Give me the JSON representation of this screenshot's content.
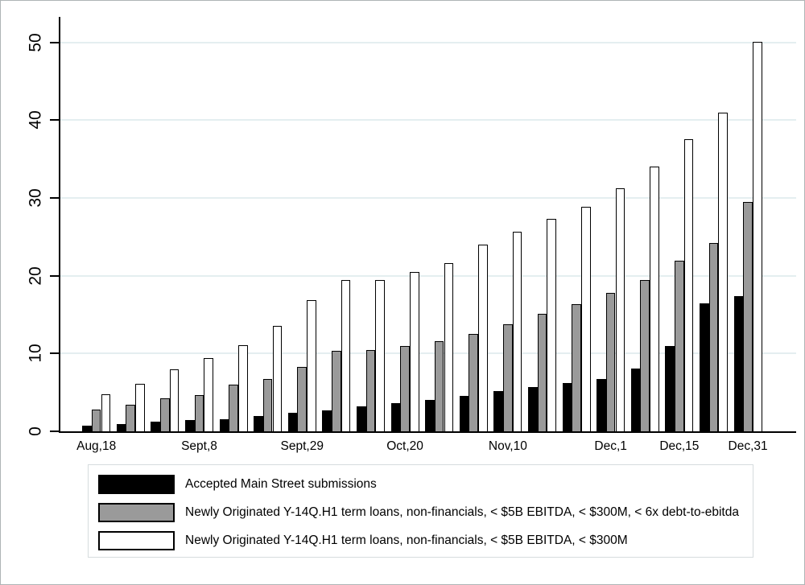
{
  "chart_data": {
    "type": "bar",
    "title": "",
    "xlabel": "",
    "ylabel": "",
    "ylim": [
      0,
      50
    ],
    "yticks": [
      0,
      10,
      20,
      30,
      40,
      50
    ],
    "grid": true,
    "n_groups": 20,
    "x_tick_labels": [
      "Aug,18",
      "Sept,8",
      "Sept,29",
      "Oct,20",
      "Nov,10",
      "Dec,1",
      "Dec,15",
      "Dec,31"
    ],
    "x_tick_group_indices": [
      0,
      3,
      6,
      9,
      12,
      15,
      17,
      19
    ],
    "legend_position": "bottom",
    "series": [
      {
        "name": "Accepted Main Street submissions",
        "color": "#000000",
        "values": [
          0.7,
          0.9,
          1.2,
          1.4,
          1.6,
          2.0,
          2.4,
          2.7,
          3.2,
          3.6,
          4.0,
          4.5,
          5.2,
          5.7,
          6.2,
          6.7,
          8.1,
          11.0,
          16.4,
          17.4
        ]
      },
      {
        "name": "Newly Originated Y-14Q.H1 term loans, non-financials, < $5B EBITDA, < $300M, < 6x debt-to-ebitda",
        "color": "#9a9a9a",
        "values": [
          2.8,
          3.4,
          4.2,
          4.7,
          6.0,
          6.7,
          8.3,
          10.3,
          10.4,
          11.0,
          11.6,
          12.5,
          13.8,
          15.1,
          16.3,
          17.8,
          19.4,
          21.9,
          24.2,
          29.5
        ]
      },
      {
        "name": "Newly Originated Y-14Q.H1 term loans, non-financials, < $5B EBITDA, < $300M",
        "color": "#ffffff",
        "values": [
          4.8,
          6.1,
          8.0,
          9.4,
          11.1,
          13.6,
          16.9,
          19.4,
          19.4,
          20.5,
          21.6,
          24.0,
          25.7,
          27.3,
          28.9,
          31.2,
          34.0,
          37.6,
          41.0,
          50.1
        ]
      }
    ]
  }
}
